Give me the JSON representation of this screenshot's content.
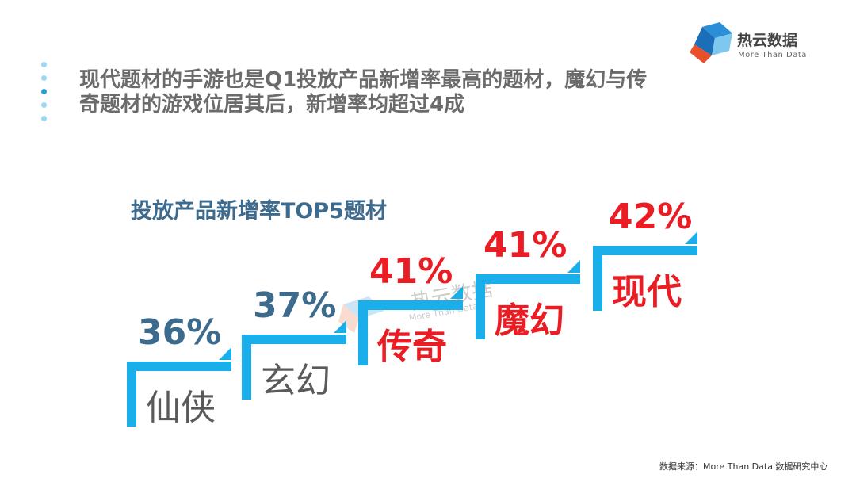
{
  "headline": "现代题材的手游也是Q1投放产品新增率最高的题材，魔幻与传奇题材的游戏位居其后，新增率均超过4成",
  "logo": {
    "name": "热云数据",
    "subtitle": "More Than Data"
  },
  "chart_data": {
    "type": "bar",
    "title": "投放产品新增率TOP5题材",
    "categories": [
      "仙侠",
      "玄幻",
      "传奇",
      "魔幻",
      "现代"
    ],
    "values": [
      36,
      37,
      41,
      41,
      42
    ],
    "value_labels": [
      "36%",
      "37%",
      "41%",
      "41%",
      "42%"
    ],
    "unit": "%",
    "colors": {
      "bar": "#1aaeea",
      "highlight": "#ea1c24",
      "normal_label": "#3d6b8e"
    }
  },
  "watermark": {
    "name": "热云数据",
    "subtitle": "More Than Data"
  },
  "source": "数据来源：More Than Data 数据研究中心"
}
